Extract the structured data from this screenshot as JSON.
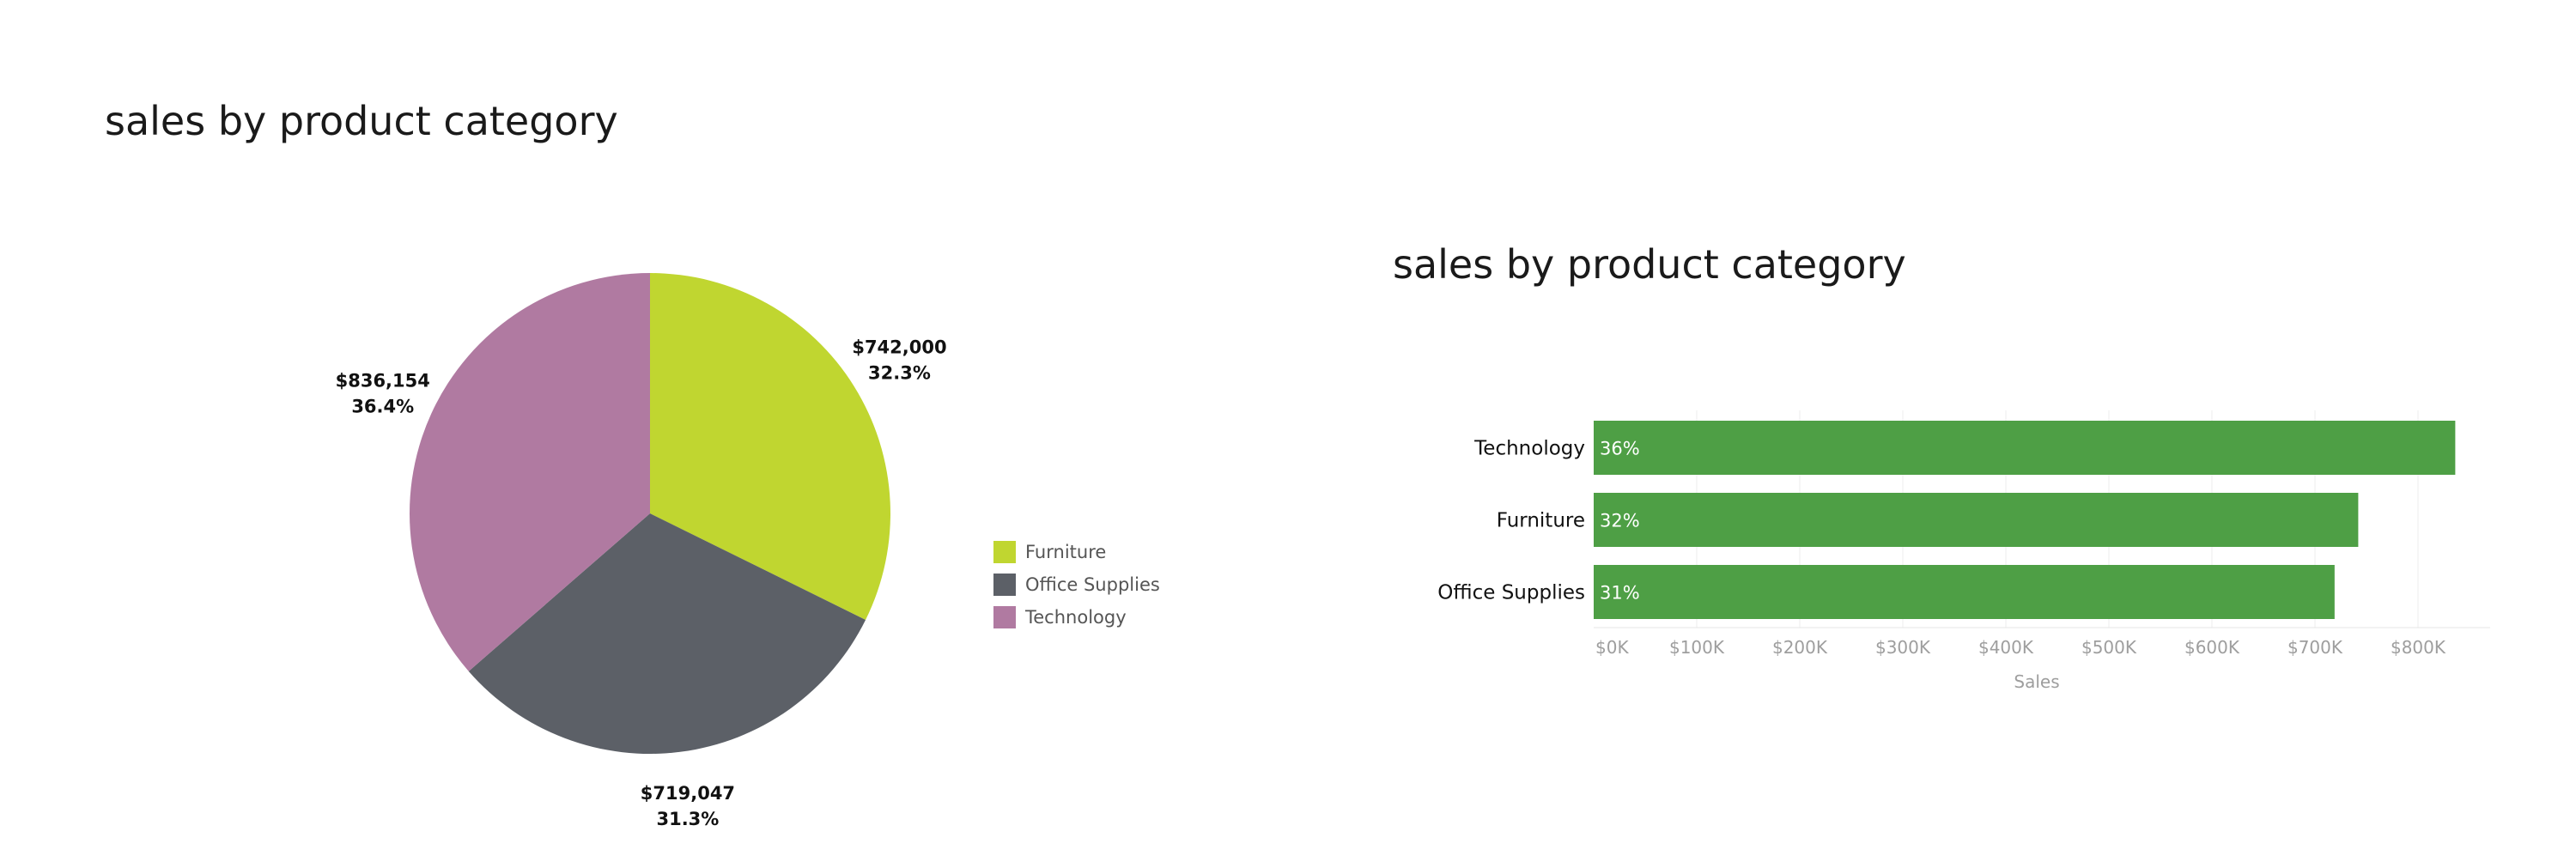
{
  "chart_data": [
    {
      "type": "pie",
      "title": "sales by product category",
      "colors": {
        "Furniture": "#c0d630",
        "Office Supplies": "#5c6067",
        "Technology": "#b07aa1"
      },
      "slices": [
        {
          "category": "Furniture",
          "value": 742000,
          "value_label": "$742,000",
          "percent_label": "32.3%"
        },
        {
          "category": "Office Supplies",
          "value": 719047,
          "value_label": "$719,047",
          "percent_label": "31.3%"
        },
        {
          "category": "Technology",
          "value": 836154,
          "value_label": "$836,154",
          "percent_label": "36.4%"
        }
      ],
      "legend": {
        "position": "right",
        "items": [
          "Furniture",
          "Office Supplies",
          "Technology"
        ]
      }
    },
    {
      "type": "bar",
      "orientation": "horizontal",
      "title": "sales by product category",
      "categories": [
        "Technology",
        "Furniture",
        "Office Supplies"
      ],
      "values": [
        836154,
        742000,
        719047
      ],
      "data_labels": [
        "36%",
        "32%",
        "31%"
      ],
      "bar_color": "#4e9f45",
      "xlabel": "Sales",
      "xlim": [
        0,
        870000
      ],
      "xticks": [
        0,
        100000,
        200000,
        300000,
        400000,
        500000,
        600000,
        700000,
        800000
      ],
      "xtick_labels": [
        "$0K",
        "$100K",
        "$200K",
        "$300K",
        "$400K",
        "$500K",
        "$600K",
        "$700K",
        "$800K"
      ],
      "grid": "vertical"
    }
  ]
}
